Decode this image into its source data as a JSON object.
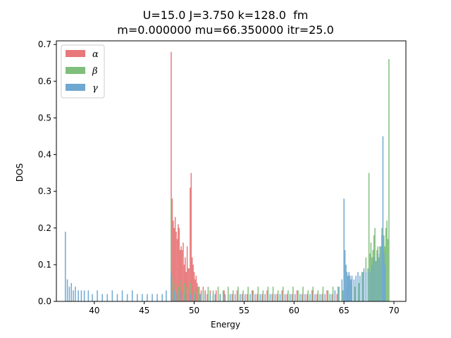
{
  "chart_data": {
    "type": "bar",
    "title_lines": [
      "U=15.0 J=3.750 k=128.0  fm",
      "m=0.000000 mu=66.350000 itr=25.0"
    ],
    "xlabel": "Energy",
    "ylabel": "DOS",
    "xlim": [
      36.2,
      71.2
    ],
    "ylim": [
      0,
      0.71
    ],
    "xticks": [
      "40",
      "45",
      "50",
      "55",
      "60",
      "65",
      "70"
    ],
    "yticks": [
      "0.0",
      "0.1",
      "0.2",
      "0.3",
      "0.4",
      "0.5",
      "0.6",
      "0.7"
    ],
    "bin_width": 0.11,
    "legend_position": "upper-left",
    "series": [
      {
        "name": "α",
        "color": "#e8787a",
        "points": [
          [
            47.7,
            0.68
          ],
          [
            47.8,
            0.28
          ],
          [
            47.9,
            0.22
          ],
          [
            48.0,
            0.2
          ],
          [
            48.1,
            0.23
          ],
          [
            48.2,
            0.19
          ],
          [
            48.3,
            0.17
          ],
          [
            48.4,
            0.21
          ],
          [
            48.5,
            0.2
          ],
          [
            48.6,
            0.14
          ],
          [
            48.7,
            0.15
          ],
          [
            48.8,
            0.14
          ],
          [
            48.9,
            0.16
          ],
          [
            49.0,
            0.1
          ],
          [
            49.1,
            0.12
          ],
          [
            49.2,
            0.08
          ],
          [
            49.3,
            0.15
          ],
          [
            49.4,
            0.09
          ],
          [
            49.5,
            0.09
          ],
          [
            49.6,
            0.31
          ],
          [
            49.7,
            0.35
          ],
          [
            49.8,
            0.12
          ],
          [
            49.9,
            0.1
          ],
          [
            50.0,
            0.08
          ],
          [
            50.1,
            0.06
          ],
          [
            50.2,
            0.07
          ],
          [
            50.3,
            0.05
          ],
          [
            50.5,
            0.04
          ],
          [
            50.7,
            0.03
          ],
          [
            50.9,
            0.04
          ],
          [
            51.1,
            0.03
          ],
          [
            51.3,
            0.02
          ],
          [
            51.6,
            0.03
          ],
          [
            51.9,
            0.02
          ],
          [
            52.2,
            0.03
          ],
          [
            52.6,
            0.02
          ],
          [
            53.0,
            0.03
          ],
          [
            53.4,
            0.02
          ],
          [
            53.8,
            0.02
          ],
          [
            54.3,
            0.03
          ],
          [
            54.8,
            0.02
          ],
          [
            55.3,
            0.02
          ],
          [
            55.8,
            0.03
          ],
          [
            56.3,
            0.02
          ],
          [
            56.8,
            0.02
          ],
          [
            57.3,
            0.03
          ],
          [
            57.8,
            0.02
          ],
          [
            58.3,
            0.02
          ],
          [
            58.8,
            0.03
          ],
          [
            59.3,
            0.02
          ],
          [
            59.8,
            0.02
          ],
          [
            60.3,
            0.03
          ],
          [
            60.8,
            0.02
          ],
          [
            61.3,
            0.02
          ],
          [
            61.8,
            0.03
          ],
          [
            62.3,
            0.02
          ],
          [
            62.8,
            0.02
          ],
          [
            63.3,
            0.03
          ],
          [
            63.8,
            0.02
          ],
          [
            64.3,
            0.02
          ],
          [
            64.8,
            0.03
          ]
        ]
      },
      {
        "name": "β",
        "color": "#7fbf7b",
        "points": [
          [
            47.7,
            0.28
          ],
          [
            47.9,
            0.07
          ],
          [
            48.1,
            0.05
          ],
          [
            48.4,
            0.04
          ],
          [
            48.7,
            0.06
          ],
          [
            49.0,
            0.05
          ],
          [
            49.3,
            0.04
          ],
          [
            49.6,
            0.05
          ],
          [
            50.0,
            0.03
          ],
          [
            50.4,
            0.04
          ],
          [
            50.9,
            0.03
          ],
          [
            51.4,
            0.04
          ],
          [
            51.9,
            0.03
          ],
          [
            52.4,
            0.04
          ],
          [
            52.9,
            0.03
          ],
          [
            53.4,
            0.04
          ],
          [
            53.9,
            0.03
          ],
          [
            54.4,
            0.04
          ],
          [
            54.9,
            0.03
          ],
          [
            55.4,
            0.04
          ],
          [
            55.9,
            0.03
          ],
          [
            56.4,
            0.04
          ],
          [
            56.9,
            0.03
          ],
          [
            57.4,
            0.04
          ],
          [
            57.9,
            0.04
          ],
          [
            58.4,
            0.03
          ],
          [
            58.9,
            0.04
          ],
          [
            59.4,
            0.03
          ],
          [
            59.9,
            0.04
          ],
          [
            60.4,
            0.03
          ],
          [
            60.9,
            0.04
          ],
          [
            61.4,
            0.03
          ],
          [
            61.9,
            0.04
          ],
          [
            62.4,
            0.03
          ],
          [
            62.9,
            0.04
          ],
          [
            63.4,
            0.03
          ],
          [
            63.9,
            0.04
          ],
          [
            64.4,
            0.04
          ],
          [
            64.9,
            0.03
          ],
          [
            65.3,
            0.04
          ],
          [
            65.7,
            0.05
          ],
          [
            66.1,
            0.04
          ],
          [
            66.5,
            0.05
          ],
          [
            66.9,
            0.08
          ],
          [
            67.2,
            0.12
          ],
          [
            67.5,
            0.35
          ],
          [
            67.6,
            0.13
          ],
          [
            67.7,
            0.16
          ],
          [
            67.8,
            0.12
          ],
          [
            67.9,
            0.14
          ],
          [
            68.0,
            0.18
          ],
          [
            68.1,
            0.2
          ],
          [
            68.2,
            0.11
          ],
          [
            68.3,
            0.14
          ],
          [
            68.4,
            0.15
          ],
          [
            68.5,
            0.12
          ],
          [
            68.6,
            0.13
          ],
          [
            68.7,
            0.15
          ],
          [
            68.8,
            0.2
          ],
          [
            68.9,
            0.17
          ],
          [
            69.0,
            0.18
          ],
          [
            69.1,
            0.15
          ],
          [
            69.2,
            0.2
          ],
          [
            69.3,
            0.22
          ],
          [
            69.4,
            0.17
          ],
          [
            69.5,
            0.66
          ]
        ]
      },
      {
        "name": "γ",
        "color": "#6fa8d1",
        "points": [
          [
            37.1,
            0.19
          ],
          [
            37.3,
            0.06
          ],
          [
            37.5,
            0.04
          ],
          [
            37.7,
            0.05
          ],
          [
            37.9,
            0.03
          ],
          [
            38.1,
            0.04
          ],
          [
            38.4,
            0.03
          ],
          [
            38.7,
            0.03
          ],
          [
            39.0,
            0.03
          ],
          [
            39.4,
            0.03
          ],
          [
            39.8,
            0.02
          ],
          [
            40.3,
            0.03
          ],
          [
            40.8,
            0.02
          ],
          [
            41.3,
            0.02
          ],
          [
            41.8,
            0.03
          ],
          [
            42.3,
            0.02
          ],
          [
            42.8,
            0.03
          ],
          [
            43.3,
            0.02
          ],
          [
            43.8,
            0.03
          ],
          [
            44.3,
            0.02
          ],
          [
            44.8,
            0.02
          ],
          [
            45.3,
            0.02
          ],
          [
            45.8,
            0.02
          ],
          [
            46.3,
            0.02
          ],
          [
            46.8,
            0.02
          ],
          [
            47.2,
            0.03
          ],
          [
            47.7,
            0.08
          ],
          [
            48.0,
            0.03
          ],
          [
            48.3,
            0.02
          ],
          [
            48.7,
            0.03
          ],
          [
            49.1,
            0.02
          ],
          [
            49.6,
            0.02
          ],
          [
            50.1,
            0.02
          ],
          [
            50.6,
            0.02
          ],
          [
            51.1,
            0.02
          ],
          [
            51.6,
            0.02
          ],
          [
            52.1,
            0.02
          ],
          [
            52.6,
            0.02
          ],
          [
            53.1,
            0.02
          ],
          [
            53.6,
            0.02
          ],
          [
            54.1,
            0.02
          ],
          [
            54.6,
            0.02
          ],
          [
            55.1,
            0.02
          ],
          [
            55.6,
            0.02
          ],
          [
            56.1,
            0.02
          ],
          [
            56.6,
            0.02
          ],
          [
            57.1,
            0.02
          ],
          [
            57.6,
            0.02
          ],
          [
            58.1,
            0.02
          ],
          [
            58.6,
            0.02
          ],
          [
            59.1,
            0.02
          ],
          [
            59.6,
            0.02
          ],
          [
            60.1,
            0.02
          ],
          [
            60.6,
            0.02
          ],
          [
            61.1,
            0.02
          ],
          [
            61.6,
            0.02
          ],
          [
            62.1,
            0.02
          ],
          [
            62.6,
            0.02
          ],
          [
            63.1,
            0.02
          ],
          [
            63.6,
            0.02
          ],
          [
            64.1,
            0.03
          ],
          [
            64.5,
            0.04
          ],
          [
            64.8,
            0.06
          ],
          [
            65.0,
            0.28
          ],
          [
            65.1,
            0.14
          ],
          [
            65.2,
            0.1
          ],
          [
            65.3,
            0.08
          ],
          [
            65.4,
            0.07
          ],
          [
            65.5,
            0.08
          ],
          [
            65.6,
            0.07
          ],
          [
            65.7,
            0.06
          ],
          [
            65.8,
            0.07
          ],
          [
            66.0,
            0.06
          ],
          [
            66.2,
            0.07
          ],
          [
            66.4,
            0.08
          ],
          [
            66.6,
            0.07
          ],
          [
            66.8,
            0.08
          ],
          [
            67.0,
            0.09
          ],
          [
            67.2,
            0.08
          ],
          [
            67.4,
            0.09
          ],
          [
            67.6,
            0.08
          ],
          [
            67.8,
            0.1
          ],
          [
            68.0,
            0.12
          ],
          [
            68.2,
            0.11
          ],
          [
            68.4,
            0.13
          ],
          [
            68.6,
            0.15
          ],
          [
            68.8,
            0.18
          ],
          [
            68.9,
            0.45
          ],
          [
            69.0,
            0.13
          ],
          [
            69.1,
            0.1
          ]
        ]
      }
    ]
  }
}
